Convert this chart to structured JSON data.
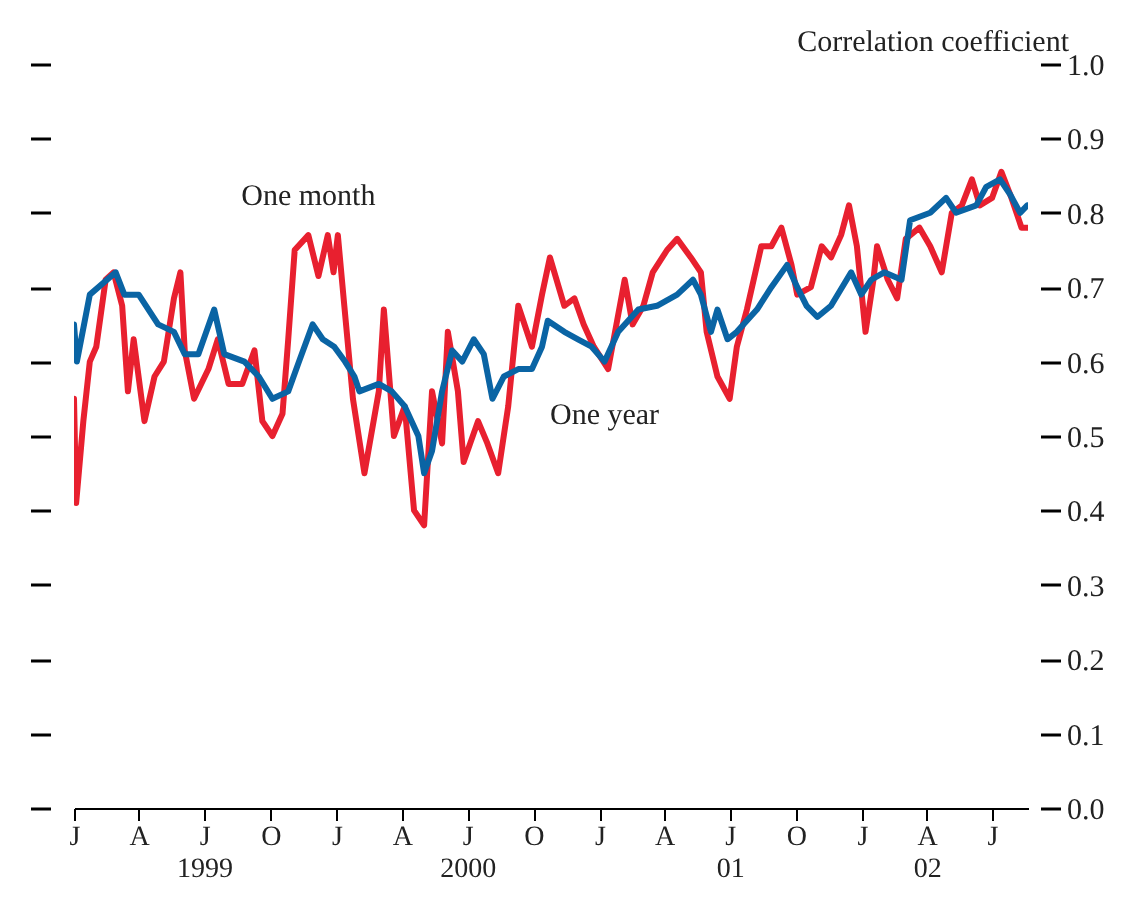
{
  "chart_data": {
    "type": "line",
    "ylabel": "Correlation coefficient",
    "xlim": [
      "1999-01-01",
      "2002-08-20"
    ],
    "ylim": [
      0,
      1
    ],
    "yticks": [
      {
        "value": 0,
        "label": "0.0"
      },
      {
        "value": 0.1,
        "label": "0.1"
      },
      {
        "value": 0.2,
        "label": "0.2"
      },
      {
        "value": 0.3,
        "label": "0.3"
      },
      {
        "value": 0.4,
        "label": "0.4"
      },
      {
        "value": 0.5,
        "label": "0.5"
      },
      {
        "value": 0.6,
        "label": "0.6"
      },
      {
        "value": 0.7,
        "label": "0.7"
      },
      {
        "value": 0.8,
        "label": "0.8"
      },
      {
        "value": 0.9,
        "label": "0.9"
      },
      {
        "value": 1,
        "label": "1.0"
      }
    ],
    "xticks": [
      {
        "value": "1999-01-01",
        "label": "J"
      },
      {
        "value": "1999-04-01",
        "label": "A"
      },
      {
        "value": "1999-07-01",
        "label": "J\n1999"
      },
      {
        "value": "1999-10-01",
        "label": "O"
      },
      {
        "value": "2000-01-01",
        "label": "J"
      },
      {
        "value": "2000-04-01",
        "label": "A"
      },
      {
        "value": "2000-07-01",
        "label": "J\n2000"
      },
      {
        "value": "2000-10-01",
        "label": "O"
      },
      {
        "value": "2001-01-01",
        "label": "J"
      },
      {
        "value": "2001-04-01",
        "label": "A"
      },
      {
        "value": "2001-07-01",
        "label": "J\n01"
      },
      {
        "value": "2001-10-01",
        "label": "O"
      },
      {
        "value": "2002-01-01",
        "label": "J"
      },
      {
        "value": "2002-04-01",
        "label": "A\n02"
      },
      {
        "value": "2002-07-01",
        "label": "J"
      }
    ],
    "grid": false,
    "series": [
      {
        "name": "One month",
        "color": "#e8202f",
        "x": [
          "1999-01-01",
          "1999-01-04",
          "1999-01-14",
          "1999-01-23",
          "1999-02-01",
          "1999-02-14",
          "1999-02-25",
          "1999-03-09",
          "1999-03-17",
          "1999-03-25",
          "1999-04-09",
          "1999-04-23",
          "1999-05-06",
          "1999-05-20",
          "1999-05-29",
          "1999-06-04",
          "1999-06-17",
          "1999-07-07",
          "1999-07-20",
          "1999-08-04",
          "1999-08-23",
          "1999-09-09",
          "1999-09-20",
          "1999-10-04",
          "1999-10-18",
          "1999-10-26",
          "1999-11-04",
          "1999-11-23",
          "1999-12-07",
          "1999-12-20",
          "1999-12-28",
          "2000-01-03",
          "2000-01-12",
          "2000-01-24",
          "2000-02-09",
          "2000-02-29",
          "2000-03-07",
          "2000-03-21",
          "2000-04-05",
          "2000-04-18",
          "2000-05-02",
          "2000-05-13",
          "2000-05-27",
          "2000-06-04",
          "2000-06-18",
          "2000-06-26",
          "2000-07-16",
          "2000-07-29",
          "2000-08-13",
          "2000-08-27",
          "2000-09-10",
          "2000-09-29",
          "2000-10-13",
          "2000-10-24",
          "2000-11-13",
          "2000-11-27",
          "2000-12-10",
          "2000-12-24",
          "2001-01-13",
          "2001-02-05",
          "2001-02-16",
          "2001-03-03",
          "2001-03-16",
          "2001-04-05",
          "2001-04-19",
          "2001-05-08",
          "2001-05-22",
          "2001-05-30",
          "2001-06-14",
          "2001-07-01",
          "2001-07-11",
          "2001-07-25",
          "2001-08-14",
          "2001-08-28",
          "2001-09-11",
          "2001-09-25",
          "2001-10-03",
          "2001-10-22",
          "2001-11-06",
          "2001-11-19",
          "2001-12-03",
          "2001-12-14",
          "2001-12-25",
          "2002-01-06",
          "2002-01-17",
          "2002-01-22",
          "2002-02-06",
          "2002-02-19",
          "2002-03-03",
          "2002-03-22",
          "2002-04-06",
          "2002-04-22",
          "2002-05-06",
          "2002-05-20",
          "2002-06-03",
          "2002-06-14",
          "2002-07-01",
          "2002-07-14",
          "2002-07-28",
          "2002-08-11",
          "2002-08-19"
        ],
        "values": [
          0.55,
          0.41,
          0.52,
          0.6,
          0.62,
          0.71,
          0.72,
          0.675,
          0.56,
          0.63,
          0.52,
          0.58,
          0.6,
          0.685,
          0.72,
          0.615,
          0.55,
          0.59,
          0.63,
          0.57,
          0.57,
          0.615,
          0.52,
          0.5,
          0.53,
          0.63,
          0.75,
          0.77,
          0.715,
          0.77,
          0.72,
          0.77,
          0.675,
          0.55,
          0.45,
          0.56,
          0.67,
          0.5,
          0.54,
          0.4,
          0.38,
          0.56,
          0.49,
          0.64,
          0.56,
          0.465,
          0.52,
          0.49,
          0.45,
          0.54,
          0.675,
          0.62,
          0.69,
          0.74,
          0.675,
          0.685,
          0.65,
          0.62,
          0.59,
          0.71,
          0.65,
          0.675,
          0.72,
          0.75,
          0.765,
          0.74,
          0.72,
          0.64,
          0.58,
          0.55,
          0.62,
          0.67,
          0.755,
          0.755,
          0.78,
          0.73,
          0.69,
          0.7,
          0.755,
          0.74,
          0.77,
          0.81,
          0.755,
          0.64,
          0.71,
          0.755,
          0.71,
          0.685,
          0.765,
          0.78,
          0.755,
          0.72,
          0.8,
          0.81,
          0.845,
          0.81,
          0.82,
          0.855,
          0.82,
          0.78,
          0.78
        ]
      },
      {
        "name": "One year",
        "color": "#0a64a4",
        "x": [
          "1999-01-01",
          "1999-01-05",
          "1999-01-23",
          "1999-02-28",
          "1999-03-12",
          "1999-04-01",
          "1999-04-28",
          "1999-05-20",
          "1999-06-04",
          "1999-06-23",
          "1999-07-15",
          "1999-07-29",
          "1999-08-26",
          "1999-09-15",
          "1999-10-04",
          "1999-10-26",
          "1999-11-10",
          "1999-11-29",
          "1999-12-13",
          "1999-12-29",
          "2000-01-13",
          "2000-01-26",
          "2000-02-02",
          "2000-02-29",
          "2000-03-18",
          "2000-04-05",
          "2000-04-24",
          "2000-05-02",
          "2000-05-13",
          "2000-05-27",
          "2000-06-10",
          "2000-06-24",
          "2000-07-10",
          "2000-07-24",
          "2000-08-05",
          "2000-08-21",
          "2000-09-10",
          "2000-09-29",
          "2000-10-13",
          "2000-10-21",
          "2000-11-13",
          "2000-12-02",
          "2000-12-21",
          "2001-01-08",
          "2001-01-27",
          "2001-02-24",
          "2001-03-22",
          "2001-04-19",
          "2001-05-11",
          "2001-05-22",
          "2001-06-05",
          "2001-06-14",
          "2001-06-28",
          "2001-07-11",
          "2001-08-08",
          "2001-08-28",
          "2001-09-19",
          "2001-10-03",
          "2001-10-16",
          "2001-10-31",
          "2001-11-19",
          "2001-12-17",
          "2001-12-31",
          "2002-01-14",
          "2002-02-01",
          "2002-02-25",
          "2002-03-09",
          "2002-04-06",
          "2002-04-28",
          "2002-05-12",
          "2002-06-09",
          "2002-06-23",
          "2002-07-12",
          "2002-07-26",
          "2002-08-09",
          "2002-08-19"
        ],
        "values": [
          0.65,
          0.6,
          0.69,
          0.72,
          0.69,
          0.69,
          0.65,
          0.64,
          0.61,
          0.61,
          0.67,
          0.61,
          0.6,
          0.58,
          0.55,
          0.56,
          0.6,
          0.65,
          0.63,
          0.62,
          0.6,
          0.58,
          0.56,
          0.57,
          0.56,
          0.54,
          0.5,
          0.45,
          0.48,
          0.56,
          0.615,
          0.6,
          0.63,
          0.61,
          0.55,
          0.58,
          0.59,
          0.59,
          0.62,
          0.655,
          0.64,
          0.63,
          0.62,
          0.6,
          0.64,
          0.67,
          0.675,
          0.69,
          0.71,
          0.69,
          0.64,
          0.67,
          0.63,
          0.64,
          0.67,
          0.7,
          0.73,
          0.7,
          0.675,
          0.66,
          0.675,
          0.72,
          0.69,
          0.71,
          0.72,
          0.71,
          0.79,
          0.8,
          0.82,
          0.8,
          0.81,
          0.835,
          0.845,
          0.825,
          0.8,
          0.81
        ]
      }
    ]
  }
}
